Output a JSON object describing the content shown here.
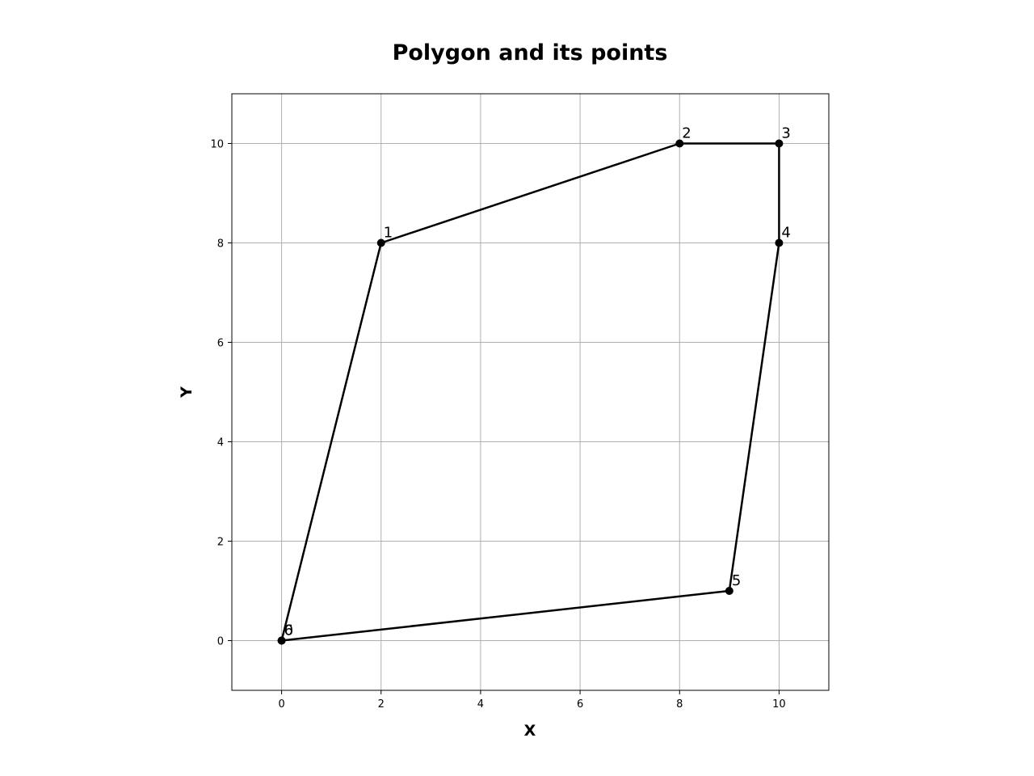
{
  "chart_data": {
    "type": "line",
    "title": "Polygon and its points",
    "xlabel": "X",
    "ylabel": "Y",
    "xlim": [
      -1,
      11
    ],
    "ylim": [
      -1,
      11
    ],
    "x_ticks": [
      0,
      2,
      4,
      6,
      8,
      10
    ],
    "y_ticks": [
      0,
      2,
      4,
      6,
      8,
      10
    ],
    "grid": true,
    "closed_polygon": true,
    "colors": {
      "line": "#000000",
      "marker": "#000000",
      "grid": "#b0b0b0",
      "frame": "#000000"
    },
    "points": [
      {
        "label": "0",
        "x": 0,
        "y": 0
      },
      {
        "label": "1",
        "x": 2,
        "y": 8
      },
      {
        "label": "2",
        "x": 8,
        "y": 10
      },
      {
        "label": "3",
        "x": 10,
        "y": 10
      },
      {
        "label": "4",
        "x": 10,
        "y": 8
      },
      {
        "label": "5",
        "x": 9,
        "y": 1
      },
      {
        "label": "6",
        "x": 0,
        "y": 0
      }
    ]
  }
}
